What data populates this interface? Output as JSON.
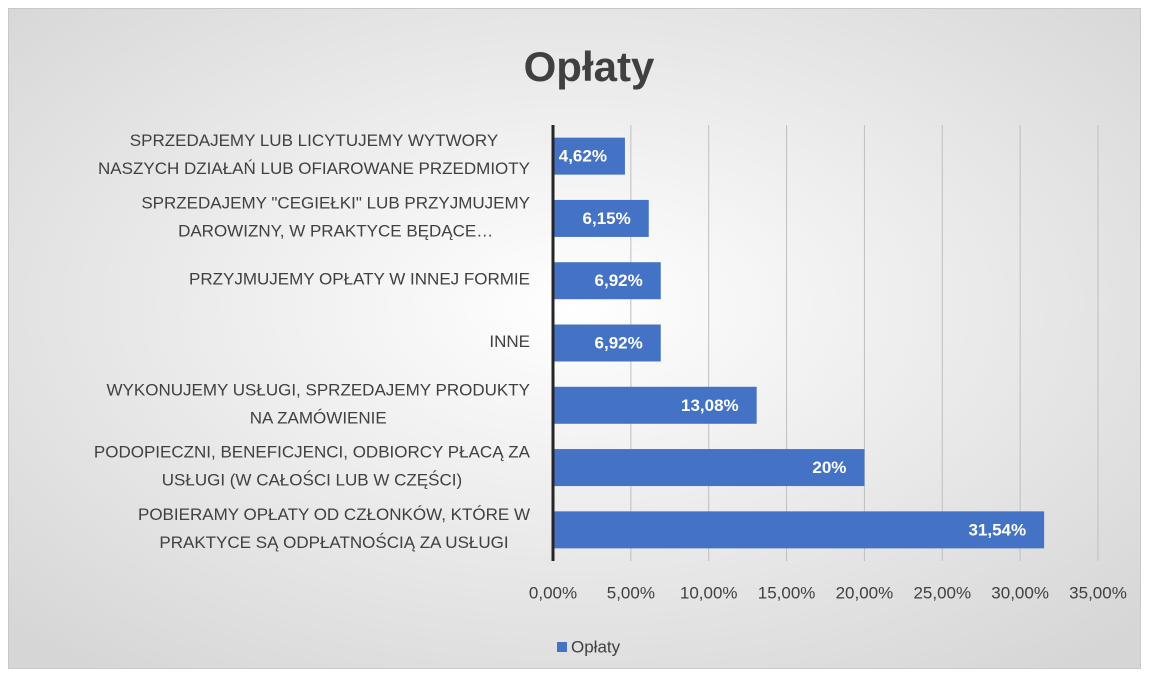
{
  "chart_data": {
    "type": "bar",
    "orientation": "horizontal",
    "title": "Opłaty",
    "categories": [
      "SPRZEDAJEMY LUB LICYTUJEMY WYTWORY\nNASZYCH DZIAŁAŃ LUB OFIAROWANE PRZEDMIOTY",
      "SPRZEDAJEMY \"CEGIEŁKI\" LUB PRZYJMUJEMY\nDAROWIZNY, W PRAKTYCE BĘDĄCE…",
      "PRZYJMUJEMY OPŁATY W INNEJ FORMIE",
      "INNE",
      "WYKONUJEMY USŁUGI, SPRZEDAJEMY PRODUKTY\nNA ZAMÓWIENIE",
      "PODOPIECZNI, BENEFICJENCI, ODBIORCY PŁACĄ ZA\nUSŁUGI (W CAŁOŚCI LUB W CZĘŚCI)",
      "POBIERAMY OPŁATY OD CZŁONKÓW, KTÓRE W\nPRAKTYCE SĄ ODPŁATNOŚCIĄ ZA USŁUGI"
    ],
    "series": [
      {
        "name": "Opłaty",
        "color": "#4472c4",
        "values": [
          4.62,
          6.15,
          6.92,
          6.92,
          13.08,
          20,
          31.54
        ],
        "value_labels": [
          "4,62%",
          "6,15%",
          "6,92%",
          "6,92%",
          "13,08%",
          "20%",
          "31,54%"
        ]
      }
    ],
    "xlim": [
      0,
      35
    ],
    "xticks": [
      {
        "value": 0,
        "label": "0,00%"
      },
      {
        "value": 5,
        "label": "5,00%"
      },
      {
        "value": 10,
        "label": "10,00%"
      },
      {
        "value": 15,
        "label": "15,00%"
      },
      {
        "value": 20,
        "label": "20,00%"
      },
      {
        "value": 25,
        "label": "25,00%"
      },
      {
        "value": 30,
        "label": "30,00%"
      },
      {
        "value": 35,
        "label": "35,00%"
      }
    ],
    "grid": true,
    "legend": "bottom"
  }
}
